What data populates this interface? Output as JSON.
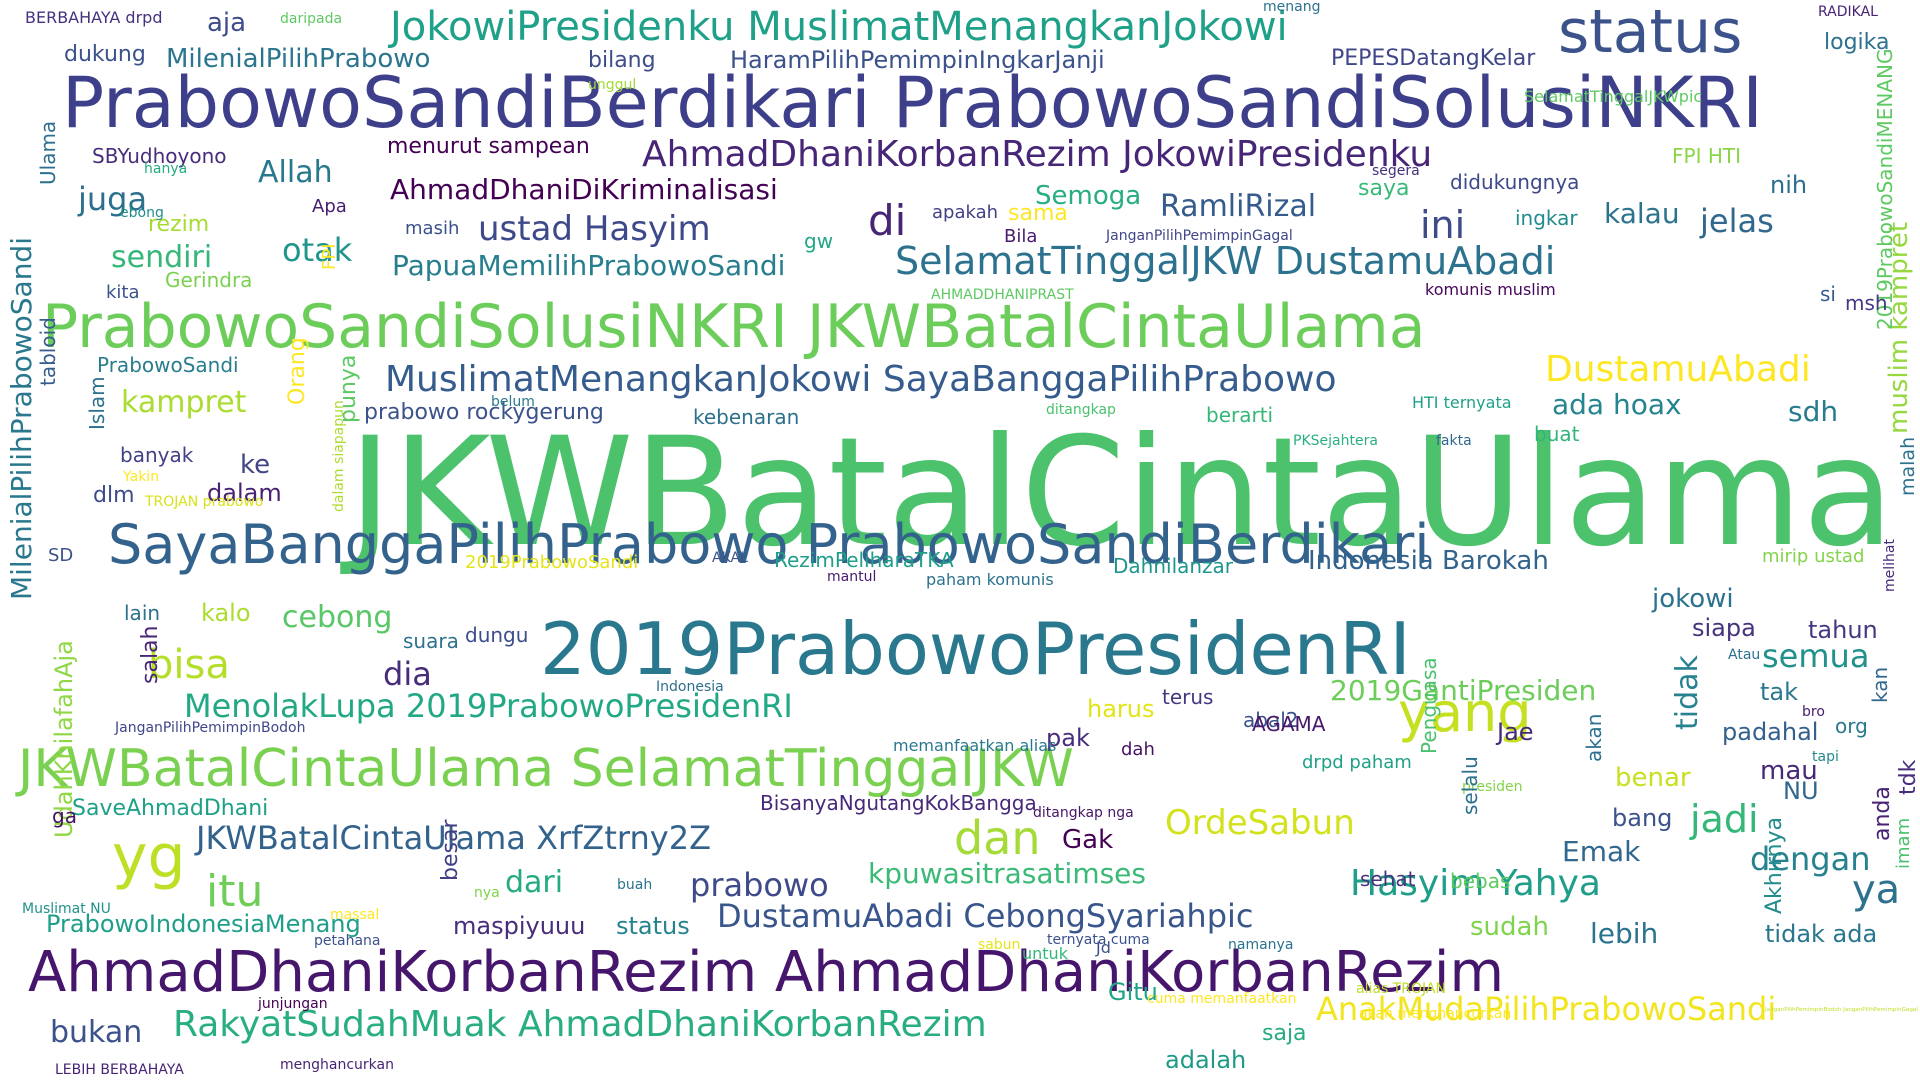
{
  "wordcloud": {
    "palette": [
      "#440154",
      "#472d7b",
      "#3b528b",
      "#2c728e",
      "#21918c",
      "#28ae80",
      "#5ec962",
      "#addc30",
      "#fde725"
    ],
    "words": [
      {
        "text": "JKWBatalCintaUlama",
        "color": "#4cc26c"
      },
      {
        "text": "PrabowoSandiBerdikari PrabowoSandiSolusiNKRI",
        "color": "#3e3f8a"
      },
      {
        "text": "PrabowoSandiSolusiNKRI JKWBatalCintaUlama",
        "color": "#6ccd5a"
      },
      {
        "text": "AhmadDhaniKorbanRezim AhmadDhaniKorbanRezim",
        "color": "#46166c"
      },
      {
        "text": "2019PrabowoPresidenRI",
        "color": "#2a788e"
      },
      {
        "text": "SayaBanggaPilihPrabowo PrabowoSandiBerdikari",
        "color": "#33638d"
      },
      {
        "text": "JKWBatalCintaUlama SelamatTinggalJKW",
        "color": "#7ad151"
      },
      {
        "text": "status",
        "color": "#3b528b"
      },
      {
        "text": "JokowiPresidenku MuslimatMenangkanJokowi",
        "color": "#1fa088"
      },
      {
        "text": "yg",
        "color": "#bddf26"
      },
      {
        "text": "yang",
        "color": "#c5e021"
      },
      {
        "text": "AhmadDhaniKorbanRezim JokowiPresidenku",
        "color": "#482677"
      },
      {
        "text": "SelamatTinggalJKW DustamuAbadi",
        "color": "#2c728e"
      },
      {
        "text": "MuslimatMenangkanJokowi SayaBanggaPilihPrabowo",
        "color": "#365c8d"
      },
      {
        "text": "MilenialPilihPrabowoSandi",
        "color": "#2a788e"
      },
      {
        "text": "dan",
        "color": "#a5db36"
      },
      {
        "text": "itu",
        "color": "#6ece58"
      },
      {
        "text": "RakyatSudahMuak AhmadDhaniKorbanRezim",
        "color": "#28ae80"
      },
      {
        "text": "MenolakLupa 2019PrabowoPresidenRI",
        "color": "#22a884"
      },
      {
        "text": "JKWBatalCintaUlama XrfZtrny2Z",
        "color": "#33638d"
      },
      {
        "text": "Hasyim Yahya",
        "color": "#1f9e89"
      },
      {
        "text": "DustamuAbadi CebongSyariahpic",
        "color": "#39568c"
      },
      {
        "text": "AnakMudaPilihPrabowoSandi",
        "color": "#f2e51d"
      },
      {
        "text": "DustamuAbadi",
        "color": "#fde725"
      },
      {
        "text": "OrdeSabun",
        "color": "#d2e21b"
      },
      {
        "text": "ustad Hasyim",
        "color": "#3e4989"
      },
      {
        "text": "AhmadDhaniDiKriminalisasi",
        "color": "#440154"
      },
      {
        "text": "di",
        "color": "#482475"
      },
      {
        "text": "ini",
        "color": "#3e4a89"
      },
      {
        "text": "bisa",
        "color": "#b5de2b"
      },
      {
        "text": "ya",
        "color": "#2d718e"
      },
      {
        "text": "jadi",
        "color": "#35b779"
      },
      {
        "text": "prabowo",
        "color": "#3e4a89"
      },
      {
        "text": "dia",
        "color": "#472c7a"
      },
      {
        "text": "juga",
        "color": "#2d708e"
      },
      {
        "text": "kalau",
        "color": "#2c738e"
      },
      {
        "text": "jelas",
        "color": "#31688e"
      },
      {
        "text": "semua",
        "color": "#21918c"
      },
      {
        "text": "dengan",
        "color": "#26828e"
      },
      {
        "text": "kpuwasitrasatimses",
        "color": "#3aba76"
      },
      {
        "text": "UdahKhilafahAja",
        "color": "#8fd744"
      },
      {
        "text": "Allah",
        "color": "#29798e"
      },
      {
        "text": "otak",
        "color": "#1f958b"
      },
      {
        "text": "sendiri",
        "color": "#35b779"
      },
      {
        "text": "kampret",
        "color": "#aadc32"
      },
      {
        "text": "muslim kampret",
        "color": "#95d840"
      },
      {
        "text": "RamliRizal",
        "color": "#365c8d"
      },
      {
        "text": "PapuaMemilihPrabowoSandi",
        "color": "#277f8e"
      },
      {
        "text": "2019GantiPresiden",
        "color": "#6ccd5a"
      },
      {
        "text": "tidak",
        "color": "#26828e"
      },
      {
        "text": "ada hoax",
        "color": "#25858e"
      },
      {
        "text": "sdh",
        "color": "#287c8e"
      },
      {
        "text": "lebih",
        "color": "#2c738e"
      },
      {
        "text": "sudah",
        "color": "#7fd34e"
      },
      {
        "text": "dari",
        "color": "#25ab82"
      },
      {
        "text": "Emak",
        "color": "#31688e"
      },
      {
        "text": "Indonesia Barokah",
        "color": "#33638d"
      },
      {
        "text": "jokowi",
        "color": "#2c728e"
      },
      {
        "text": "Gak",
        "color": "#440154"
      },
      {
        "text": "cebong",
        "color": "#58c765"
      },
      {
        "text": "Semoga",
        "color": "#27ad81"
      },
      {
        "text": "PrabowoIndonesiaMenang",
        "color": "#1f9e89"
      },
      {
        "text": "SaveAhmadDhani",
        "color": "#1fa188"
      },
      {
        "text": "bukan",
        "color": "#3b528b"
      },
      {
        "text": "Gitu",
        "color": "#20a486"
      },
      {
        "text": "maspiyuuu",
        "color": "#472d7b"
      },
      {
        "text": "status",
        "color": "#25838e"
      },
      {
        "text": "adalah",
        "color": "#1f9a8a"
      },
      {
        "text": "saja",
        "color": "#25ab82"
      },
      {
        "text": "tidak ada",
        "color": "#2a768e"
      },
      {
        "text": "Akhirnya",
        "color": "#228d8d"
      },
      {
        "text": "padahal",
        "color": "#34608d"
      },
      {
        "text": "tahun",
        "color": "#453882"
      },
      {
        "text": "siapa",
        "color": "#46327e"
      },
      {
        "text": "mau",
        "color": "#482878"
      },
      {
        "text": "bang",
        "color": "#3b528b"
      },
      {
        "text": "benar",
        "color": "#c8e020"
      },
      {
        "text": "NU",
        "color": "#31688e"
      },
      {
        "text": "malah",
        "color": "#2c728e"
      },
      {
        "text": "2019PrabowoSandiMENANG",
        "color": "#5ec962"
      },
      {
        "text": "tak",
        "color": "#2a788e"
      },
      {
        "text": "org",
        "color": "#2a788e"
      },
      {
        "text": "kan",
        "color": "#31688e"
      },
      {
        "text": "tdk",
        "color": "#472d7b"
      },
      {
        "text": "anda",
        "color": "#482173"
      },
      {
        "text": "imam",
        "color": "#4ac16d"
      },
      {
        "text": "mirip ustad",
        "color": "#84d44b"
      },
      {
        "text": "melihat",
        "color": "#472a7a"
      },
      {
        "text": "bro",
        "color": "#481b6d"
      },
      {
        "text": "tapi",
        "color": "#24878e"
      },
      {
        "text": "Atau",
        "color": "#2c728e"
      },
      {
        "text": "msh",
        "color": "#443983"
      },
      {
        "text": "si",
        "color": "#365c8d"
      },
      {
        "text": "nih",
        "color": "#2e6e8e"
      },
      {
        "text": "saya",
        "color": "#38b977"
      },
      {
        "text": "didukungnya",
        "color": "#3e4989"
      },
      {
        "text": "ingkar",
        "color": "#228c8d"
      },
      {
        "text": "logika",
        "color": "#2d718e"
      },
      {
        "text": "RADIKAL",
        "color": "#482374"
      },
      {
        "text": "SelamatTinggalJKWpic",
        "color": "#5ec962"
      },
      {
        "text": "PEPESDatangKelar",
        "color": "#3f4788"
      },
      {
        "text": "HaramPilihPemimpinIngkarJanji",
        "color": "#3b528b"
      },
      {
        "text": "bilang",
        "color": "#3d4d8a"
      },
      {
        "text": "MilenialPilihPrabowo",
        "color": "#2a768e"
      },
      {
        "text": "dukung",
        "color": "#3b528b"
      },
      {
        "text": "aja",
        "color": "#3e4c8a"
      },
      {
        "text": "daripada",
        "color": "#5ec962"
      },
      {
        "text": "BERBAHAYA drpd",
        "color": "#46327e"
      },
      {
        "text": "menang",
        "color": "#2c728e"
      },
      {
        "text": "unggul",
        "color": "#a2da37"
      },
      {
        "text": "SBYudhoyono",
        "color": "#472d7b"
      },
      {
        "text": "hanya",
        "color": "#25ab82"
      },
      {
        "text": "menurut sampean",
        "color": "#440154"
      },
      {
        "text": "FPI HTI",
        "color": "#8bd646"
      },
      {
        "text": "segera",
        "color": "#46307e"
      },
      {
        "text": "Apa",
        "color": "#481c6e"
      },
      {
        "text": "rezim",
        "color": "#a8db34"
      },
      {
        "text": "Gerindra",
        "color": "#7ad151"
      },
      {
        "text": "FPI",
        "color": "#fde725"
      },
      {
        "text": "kita",
        "color": "#3b528b"
      },
      {
        "text": "ebong",
        "color": "#228c8d"
      },
      {
        "text": "masih",
        "color": "#3b528b"
      },
      {
        "text": "apakah",
        "color": "#424186"
      },
      {
        "text": "sama",
        "color": "#fde725"
      },
      {
        "text": "Bila",
        "color": "#481c6e"
      },
      {
        "text": "JanganPilihPemimpinGagal",
        "color": "#404688"
      },
      {
        "text": "gw",
        "color": "#22a785"
      },
      {
        "text": "AHMADDHANIPRAST",
        "color": "#5ec962"
      },
      {
        "text": "komunis muslim",
        "color": "#46075a"
      },
      {
        "text": "PrabowoSandi",
        "color": "#287d8e"
      },
      {
        "text": "Ulama",
        "color": "#2e6f8e"
      },
      {
        "text": "tabloid",
        "color": "#365c8d"
      },
      {
        "text": "Islam",
        "color": "#2c728e"
      },
      {
        "text": "Orang",
        "color": "#fde725"
      },
      {
        "text": "punya",
        "color": "#5ec962"
      },
      {
        "text": "prabowo rockygerung",
        "color": "#3b528b"
      },
      {
        "text": "kebenaran",
        "color": "#2d708e"
      },
      {
        "text": "belum",
        "color": "#2a788e"
      },
      {
        "text": "ditangkap",
        "color": "#4ac16d"
      },
      {
        "text": "HTI ternyata",
        "color": "#1fa188"
      },
      {
        "text": "berarti",
        "color": "#35b779"
      },
      {
        "text": "PKSejahtera",
        "color": "#2ab07f"
      },
      {
        "text": "fakta",
        "color": "#31688e"
      },
      {
        "text": "buat",
        "color": "#32b67a"
      },
      {
        "text": "banyak",
        "color": "#424086"
      },
      {
        "text": "ke",
        "color": "#414487"
      },
      {
        "text": "dalam",
        "color": "#482173"
      },
      {
        "text": "dlm",
        "color": "#3d4d8a"
      },
      {
        "text": "Yakin",
        "color": "#fde725"
      },
      {
        "text": "TROJAN prabowo",
        "color": "#d8e219"
      },
      {
        "text": "dalam siapapun",
        "color": "#addc30"
      },
      {
        "text": "SD",
        "color": "#3b528b"
      },
      {
        "text": "lain",
        "color": "#2c728e"
      },
      {
        "text": "kalo",
        "color": "#addc30"
      },
      {
        "text": "2019PrabowoSandi",
        "color": "#e5e419"
      },
      {
        "text": "AKAL",
        "color": "#3b528b"
      },
      {
        "text": "RezimPeliharaTKA",
        "color": "#1f9e89"
      },
      {
        "text": "mantul",
        "color": "#481a6c"
      },
      {
        "text": "paham komunis",
        "color": "#2c728e"
      },
      {
        "text": "Dahnilanzar",
        "color": "#1f968b"
      },
      {
        "text": "suara",
        "color": "#2c728e"
      },
      {
        "text": "dungu",
        "color": "#3d4d8a"
      },
      {
        "text": "salah",
        "color": "#482677"
      },
      {
        "text": "Indonesia",
        "color": "#2d708e"
      },
      {
        "text": "terus",
        "color": "#453781"
      },
      {
        "text": "harus",
        "color": "#e2e418"
      },
      {
        "text": "abal2",
        "color": "#3b528b"
      },
      {
        "text": "AGAMA",
        "color": "#481769"
      },
      {
        "text": "pak",
        "color": "#472d7b"
      },
      {
        "text": "dah",
        "color": "#471365"
      },
      {
        "text": "Jae",
        "color": "#482878"
      },
      {
        "text": "JanganPilihPemimpinBodoh",
        "color": "#3f4788"
      },
      {
        "text": "memanfaatkan alias",
        "color": "#2a788e"
      },
      {
        "text": "drpd paham",
        "color": "#1fa188"
      },
      {
        "text": "ga",
        "color": "#471063"
      },
      {
        "text": "BisanyaNgutangKokBangga",
        "color": "#482878"
      },
      {
        "text": "ditangkap nga",
        "color": "#481668"
      },
      {
        "text": "Penguasa",
        "color": "#4ac16d"
      },
      {
        "text": "presiden",
        "color": "#84d44b"
      },
      {
        "text": "selalu",
        "color": "#2c728e"
      },
      {
        "text": "akan",
        "color": "#2c728e"
      },
      {
        "text": "bebas",
        "color": "#5ec962"
      },
      {
        "text": "sehat",
        "color": "#463480"
      },
      {
        "text": "besar",
        "color": "#423f85"
      },
      {
        "text": "nya",
        "color": "#7fd34e"
      },
      {
        "text": "buah",
        "color": "#2c728e"
      },
      {
        "text": "Muslimat NU",
        "color": "#21918c"
      },
      {
        "text": "massal",
        "color": "#fde725"
      },
      {
        "text": "petahana",
        "color": "#3b528b"
      },
      {
        "text": "sabun",
        "color": "#e5e419"
      },
      {
        "text": "Jd",
        "color": "#3b528b"
      },
      {
        "text": "ternyata cuma",
        "color": "#3b528b"
      },
      {
        "text": "namanya",
        "color": "#2c728e"
      },
      {
        "text": "untuk",
        "color": "#35b779"
      },
      {
        "text": "cuma memanfaatkan",
        "color": "#fde725"
      },
      {
        "text": "alias TROJAN",
        "color": "#bddf26"
      },
      {
        "text": "junjungan",
        "color": "#440154"
      },
      {
        "text": "akan menghancurkan",
        "color": "#fde725"
      },
      {
        "text": "JanganPilihPemimpinBodoh JanganPilihPemimpinGagal",
        "color": "#bddf26"
      },
      {
        "text": "LEBIH BERBAHAYA",
        "color": "#482475"
      },
      {
        "text": "menghancurkan",
        "color": "#482475"
      }
    ]
  }
}
